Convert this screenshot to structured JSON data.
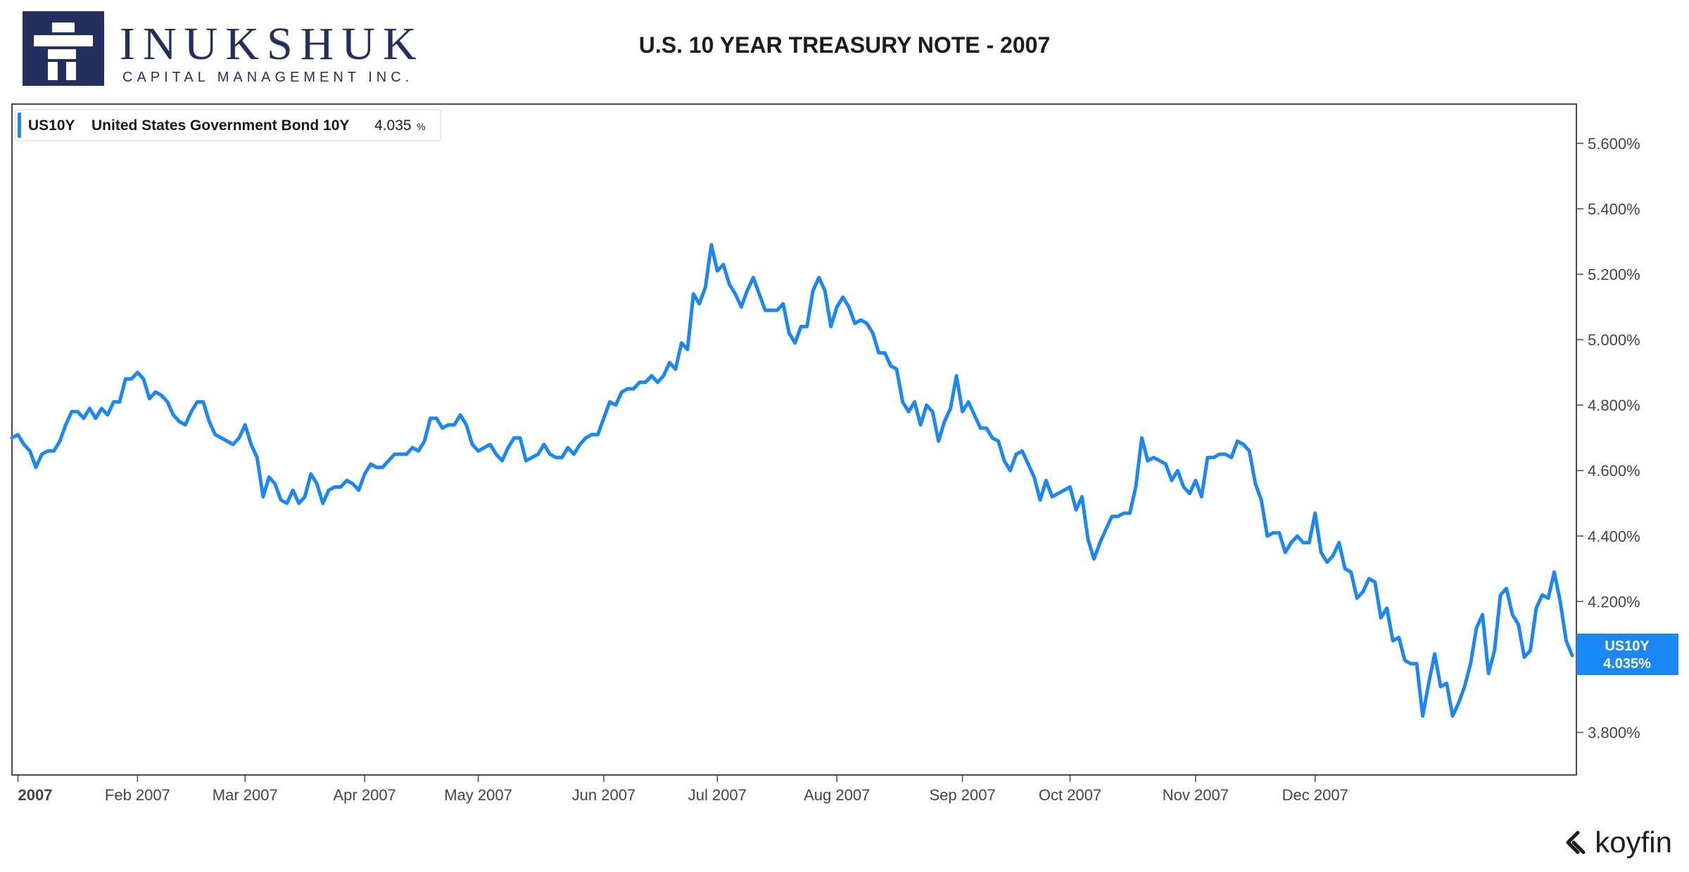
{
  "logo": {
    "name": "INUKSHUK",
    "tagline": "CAPITAL MANAGEMENT INC."
  },
  "title": "U.S. 10 YEAR TREASURY NOTE - 2007",
  "legend": {
    "ticker": "US10Y",
    "description": "United States Government Bond 10Y",
    "value": "4.035",
    "unit": "%"
  },
  "price_tag": {
    "ticker": "US10Y",
    "value": "4.035%"
  },
  "brand": "koyfin",
  "colors": {
    "series": "#1a87f5",
    "tag_bg": "#1a87f5",
    "logo_navy": "#23305f"
  },
  "chart_data": {
    "type": "line",
    "title": "U.S. 10 YEAR TREASURY NOTE - 2007",
    "xlabel": "",
    "ylabel": "",
    "ylim": [
      3.67,
      5.72
    ],
    "y_ticks": [
      3.8,
      4.0,
      4.2,
      4.4,
      4.6,
      4.8,
      5.0,
      5.2,
      5.4,
      5.6
    ],
    "y_tick_labels": [
      "3.800%",
      "4.000%",
      "4.200%",
      "4.400%",
      "4.600%",
      "4.800%",
      "5.000%",
      "5.200%",
      "5.400%",
      "5.600%"
    ],
    "x_tick_labels": [
      "2007",
      "Feb 2007",
      "Mar 2007",
      "Apr 2007",
      "May 2007",
      "Jun 2007",
      "Jul 2007",
      "Aug 2007",
      "Sep 2007",
      "Oct 2007",
      "Nov 2007",
      "Dec 2007"
    ],
    "x_tick_index": [
      1,
      21,
      39,
      59,
      78,
      99,
      118,
      138,
      159,
      177,
      198,
      218
    ],
    "grid": false,
    "legend_position": "top-left",
    "series": [
      {
        "name": "US10Y",
        "values": [
          4.7,
          4.71,
          4.68,
          4.66,
          4.61,
          4.65,
          4.66,
          4.66,
          4.69,
          4.74,
          4.78,
          4.78,
          4.76,
          4.79,
          4.76,
          4.79,
          4.77,
          4.81,
          4.81,
          4.88,
          4.88,
          4.9,
          4.88,
          4.82,
          4.84,
          4.83,
          4.81,
          4.77,
          4.75,
          4.74,
          4.78,
          4.81,
          4.81,
          4.75,
          4.71,
          4.7,
          4.69,
          4.68,
          4.7,
          4.74,
          4.68,
          4.64,
          4.52,
          4.58,
          4.56,
          4.51,
          4.5,
          4.54,
          4.5,
          4.52,
          4.59,
          4.56,
          4.5,
          4.54,
          4.55,
          4.55,
          4.57,
          4.56,
          4.54,
          4.59,
          4.62,
          4.61,
          4.61,
          4.63,
          4.65,
          4.65,
          4.65,
          4.67,
          4.66,
          4.69,
          4.76,
          4.76,
          4.73,
          4.74,
          4.74,
          4.77,
          4.74,
          4.68,
          4.66,
          4.67,
          4.68,
          4.65,
          4.63,
          4.67,
          4.7,
          4.7,
          4.63,
          4.64,
          4.65,
          4.68,
          4.65,
          4.64,
          4.64,
          4.67,
          4.65,
          4.68,
          4.7,
          4.71,
          4.71,
          4.76,
          4.81,
          4.8,
          4.84,
          4.85,
          4.85,
          4.87,
          4.87,
          4.89,
          4.87,
          4.89,
          4.93,
          4.91,
          4.99,
          4.97,
          5.14,
          5.11,
          5.16,
          5.29,
          5.21,
          5.23,
          5.17,
          5.14,
          5.1,
          5.15,
          5.19,
          5.14,
          5.09,
          5.09,
          5.09,
          5.11,
          5.02,
          4.99,
          5.04,
          5.04,
          5.15,
          5.19,
          5.15,
          5.04,
          5.1,
          5.13,
          5.1,
          5.05,
          5.06,
          5.05,
          5.02,
          4.96,
          4.96,
          4.92,
          4.91,
          4.81,
          4.78,
          4.81,
          4.74,
          4.8,
          4.78,
          4.69,
          4.75,
          4.79,
          4.89,
          4.78,
          4.81,
          4.77,
          4.73,
          4.73,
          4.7,
          4.69,
          4.63,
          4.6,
          4.65,
          4.66,
          4.62,
          4.58,
          4.51,
          4.57,
          4.52,
          4.53,
          4.54,
          4.55,
          4.48,
          4.52,
          4.39,
          4.33,
          4.38,
          4.42,
          4.46,
          4.46,
          4.47,
          4.47,
          4.55,
          4.7,
          4.63,
          4.64,
          4.63,
          4.62,
          4.57,
          4.6,
          4.55,
          4.53,
          4.57,
          4.52,
          4.64,
          4.64,
          4.65,
          4.65,
          4.64,
          4.69,
          4.68,
          4.66,
          4.56,
          4.51,
          4.4,
          4.41,
          4.41,
          4.35,
          4.38,
          4.4,
          4.38,
          4.38,
          4.47,
          4.35,
          4.32,
          4.34,
          4.38,
          4.3,
          4.29,
          4.21,
          4.23,
          4.27,
          4.26,
          4.15,
          4.18,
          4.08,
          4.09,
          4.02,
          4.01,
          4.01,
          3.85,
          3.95,
          4.04,
          3.94,
          3.95,
          3.85,
          3.89,
          3.94,
          4.01,
          4.12,
          4.16,
          3.98,
          4.05,
          4.22,
          4.24,
          4.16,
          4.13,
          4.03,
          4.05,
          4.18,
          4.22,
          4.21,
          4.29,
          4.2,
          4.08,
          4.035
        ]
      }
    ]
  }
}
